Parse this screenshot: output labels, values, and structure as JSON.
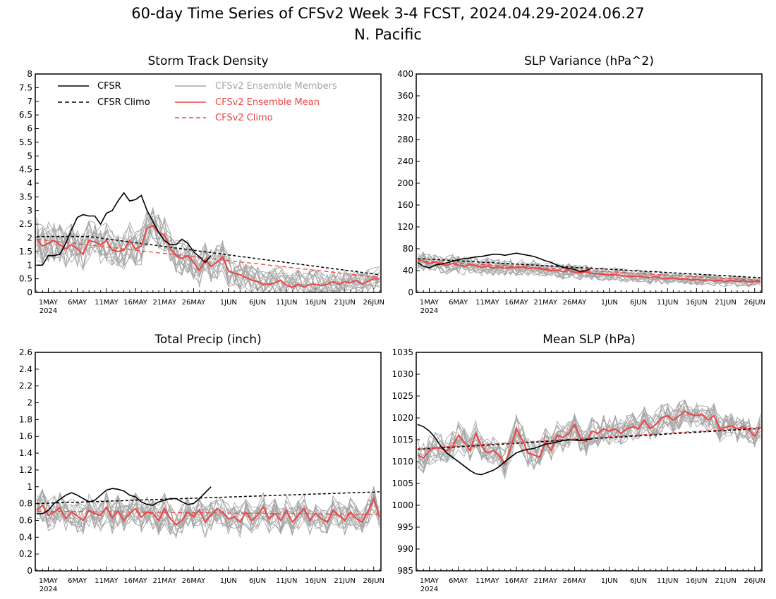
{
  "page": {
    "title_line1": "60-day Time Series of CFSv2 Week 3-4 FCST, 2024.04.29-2024.06.27",
    "title_line2": "N. Pacific"
  },
  "colors": {
    "cfsr": "#000000",
    "cfsr_climo": "#000000",
    "ens_members": "#a6a6a6",
    "ens_mean": "#ee4444",
    "cfsv2_climo": "#ee4444"
  },
  "x_axis": {
    "n_days": 60,
    "tick_positions": [
      2,
      7,
      12,
      17,
      22,
      27,
      33,
      38,
      43,
      48,
      53,
      58
    ],
    "tick_labels": [
      "1MAY",
      "6MAY",
      "11MAY",
      "16MAY",
      "21MAY",
      "26MAY",
      "1JUN",
      "6JUN",
      "11JUN",
      "16JUN",
      "21JUN",
      "26JUN"
    ],
    "year_label": "2024"
  },
  "legend": {
    "cfsr": "CFSR",
    "cfsr_climo": "CFSR Climo",
    "ens_members": "CFSv2 Ensemble Members",
    "ens_mean": "CFSv2 Ensemble Mean",
    "cfsv2_climo": "CFSv2 Climo"
  },
  "chart_data": [
    {
      "type": "line",
      "title": "Storm Track Density",
      "ylim": [
        0,
        8
      ],
      "yticks": [
        0,
        0.5,
        1,
        1.5,
        2,
        2.5,
        3,
        3.5,
        4,
        4.5,
        5,
        5.5,
        6,
        6.5,
        7,
        7.5,
        8
      ],
      "ytick_labels": [
        "0",
        "0.5",
        "1",
        "1.5",
        "2",
        "2.5",
        "3",
        "3.5",
        "4",
        "4.5",
        "5",
        "5.5",
        "6",
        "6.5",
        "7",
        "7.5",
        "8"
      ],
      "cfsr_days": [
        0,
        1,
        2,
        3,
        4,
        5,
        6,
        7,
        8,
        9,
        10,
        11,
        12,
        13,
        14,
        15,
        16,
        17,
        18,
        19,
        20,
        21,
        22,
        23,
        24,
        25,
        26,
        27,
        28,
        29,
        30
      ],
      "cfsr": [
        1.0,
        1.0,
        1.35,
        1.35,
        1.4,
        1.8,
        2.3,
        2.75,
        2.85,
        2.8,
        2.8,
        2.5,
        2.9,
        3.0,
        3.35,
        3.65,
        3.35,
        3.4,
        3.55,
        3.0,
        2.6,
        2.2,
        1.9,
        1.75,
        1.75,
        1.95,
        1.8,
        1.5,
        1.3,
        1.1,
        1.35
      ],
      "cfsr_climo_start": 2.05,
      "cfsr_climo_end": 0.65,
      "cfsv2_climo_start": 1.95,
      "cfsv2_climo_end": 0.55,
      "ens_mean": [
        1.95,
        1.7,
        1.8,
        1.9,
        1.75,
        1.6,
        1.75,
        1.6,
        1.4,
        1.9,
        1.85,
        1.75,
        1.9,
        1.55,
        1.5,
        1.55,
        1.9,
        1.6,
        1.7,
        2.35,
        2.45,
        2.2,
        2.1,
        1.6,
        1.35,
        1.25,
        1.35,
        1.1,
        0.8,
        1.2,
        0.95,
        1.1,
        1.3,
        0.8,
        0.7,
        0.65,
        0.55,
        0.45,
        0.4,
        0.3,
        0.3,
        0.35,
        0.45,
        0.25,
        0.2,
        0.3,
        0.2,
        0.3,
        0.3,
        0.25,
        0.3,
        0.4,
        0.3,
        0.4,
        0.35,
        0.45,
        0.3,
        0.4,
        0.5,
        0.5
      ],
      "ens_spread": 0.8,
      "ens_spread_end": 0.45
    },
    {
      "type": "line",
      "title": "SLP Variance (hPa^2)",
      "ylim": [
        0,
        400
      ],
      "yticks": [
        0,
        40,
        80,
        120,
        160,
        200,
        240,
        280,
        320,
        360,
        400
      ],
      "ytick_labels": [
        "0",
        "40",
        "80",
        "120",
        "160",
        "200",
        "240",
        "280",
        "320",
        "360",
        "400"
      ],
      "cfsr_days": [
        0,
        1,
        2,
        3,
        4,
        5,
        6,
        7,
        8,
        9,
        10,
        11,
        12,
        13,
        14,
        15,
        16,
        17,
        18,
        19,
        20,
        21,
        22,
        23,
        24,
        25,
        26,
        27,
        28,
        29,
        30
      ],
      "cfsr": [
        55,
        48,
        45,
        50,
        52,
        54,
        57,
        60,
        62,
        63,
        65,
        66,
        68,
        70,
        70,
        68,
        70,
        72,
        70,
        68,
        66,
        62,
        58,
        55,
        50,
        46,
        44,
        42,
        38,
        40,
        45
      ],
      "cfsr_climo_start": 62,
      "cfsr_climo_end": 27,
      "cfsv2_climo_start": 58,
      "cfsv2_climo_end": 22,
      "ens_mean": [
        60,
        57,
        53,
        56,
        52,
        50,
        53,
        50,
        48,
        51,
        49,
        46,
        48,
        45,
        47,
        44,
        46,
        45,
        47,
        44,
        45,
        43,
        42,
        40,
        41,
        38,
        40,
        37,
        36,
        38,
        35,
        34,
        33,
        32,
        33,
        31,
        30,
        29,
        30,
        28,
        27,
        29,
        26,
        25,
        27,
        24,
        25,
        23,
        24,
        22,
        23,
        21,
        22,
        20,
        22,
        20,
        21,
        19,
        20,
        20
      ],
      "ens_spread": 18,
      "ens_spread_end": 9
    },
    {
      "type": "line",
      "title": "Total Precip (inch)",
      "ylim": [
        0,
        2.6
      ],
      "yticks": [
        0,
        0.2,
        0.4,
        0.6,
        0.8,
        1.0,
        1.2,
        1.4,
        1.6,
        1.8,
        2.0,
        2.2,
        2.4,
        2.6
      ],
      "ytick_labels": [
        "0",
        "0.2",
        "0.4",
        "0.6",
        "0.8",
        "1",
        "1.2",
        "1.4",
        "1.6",
        "1.8",
        "2",
        "2.2",
        "2.4",
        "2.6"
      ],
      "cfsr_days": [
        0,
        1,
        2,
        3,
        4,
        5,
        6,
        7,
        8,
        9,
        10,
        11,
        12,
        13,
        14,
        15,
        16,
        17,
        18,
        19,
        20,
        21,
        22,
        23,
        24,
        25,
        26,
        27,
        28,
        29,
        30
      ],
      "cfsr": [
        0.68,
        0.68,
        0.72,
        0.8,
        0.85,
        0.9,
        0.93,
        0.9,
        0.86,
        0.82,
        0.84,
        0.9,
        0.96,
        0.98,
        0.97,
        0.95,
        0.9,
        0.88,
        0.82,
        0.79,
        0.78,
        0.82,
        0.84,
        0.86,
        0.86,
        0.82,
        0.79,
        0.8,
        0.86,
        0.93,
        1.0
      ],
      "cfsr_climo_start": 0.8,
      "cfsr_climo_end": 0.94,
      "cfsv2_climo_start": 0.71,
      "cfsv2_climo_end": 0.67,
      "ens_mean": [
        0.72,
        0.78,
        0.66,
        0.7,
        0.75,
        0.62,
        0.7,
        0.65,
        0.6,
        0.72,
        0.68,
        0.66,
        0.76,
        0.63,
        0.71,
        0.6,
        0.68,
        0.74,
        0.64,
        0.7,
        0.68,
        0.6,
        0.74,
        0.62,
        0.55,
        0.6,
        0.7,
        0.64,
        0.72,
        0.58,
        0.66,
        0.74,
        0.7,
        0.62,
        0.64,
        0.58,
        0.7,
        0.6,
        0.66,
        0.76,
        0.62,
        0.68,
        0.6,
        0.72,
        0.58,
        0.66,
        0.74,
        0.6,
        0.68,
        0.62,
        0.58,
        0.72,
        0.66,
        0.6,
        0.7,
        0.62,
        0.58,
        0.7,
        0.86,
        0.64
      ],
      "ens_spread": 0.2,
      "ens_spread_end": 0.17
    },
    {
      "type": "line",
      "title": "Mean SLP (hPa)",
      "ylim": [
        985,
        1035
      ],
      "yticks": [
        985,
        990,
        995,
        1000,
        1005,
        1010,
        1015,
        1020,
        1025,
        1030,
        1035
      ],
      "ytick_labels": [
        "985",
        "990",
        "995",
        "1000",
        "1005",
        "1010",
        "1015",
        "1020",
        "1025",
        "1030",
        "1035"
      ],
      "cfsr_days": [
        0,
        1,
        2,
        3,
        4,
        5,
        6,
        7,
        8,
        9,
        10,
        11,
        12,
        13,
        14,
        15,
        16,
        17,
        18,
        19,
        20,
        21,
        22,
        23,
        24,
        25,
        26,
        27,
        28,
        29,
        30
      ],
      "cfsr": [
        1018.5,
        1018,
        1017,
        1015.5,
        1013.5,
        1012,
        1011,
        1010,
        1009,
        1008,
        1007.2,
        1007,
        1007.5,
        1008,
        1008.8,
        1010,
        1011,
        1012,
        1012.5,
        1012.8,
        1013,
        1013.5,
        1014,
        1014.2,
        1014.5,
        1014.8,
        1015,
        1014.9,
        1014.8,
        1015,
        1015.2
      ],
      "cfsr_climo_start": 1012.8,
      "cfsr_climo_end": 1017.6,
      "cfsv2_climo_start": 1013.0,
      "cfsv2_climo_end": 1017.8,
      "ens_mean": [
        1011.5,
        1010.8,
        1012.5,
        1013.2,
        1013.0,
        1012.5,
        1013.5,
        1016,
        1014.5,
        1012.5,
        1016.5,
        1013.5,
        1012,
        1012.5,
        1011.5,
        1009.5,
        1013,
        1017.5,
        1015,
        1012,
        1011.5,
        1011,
        1014.5,
        1012.5,
        1016.0,
        1015.5,
        1016.5,
        1018.5,
        1015.5,
        1014.5,
        1017.0,
        1016.5,
        1017.5,
        1017.0,
        1017.5,
        1016.5,
        1017.5,
        1018.0,
        1017.5,
        1019.5,
        1017.5,
        1018.5,
        1020.0,
        1020.5,
        1019.5,
        1020.5,
        1021.5,
        1020.8,
        1020.5,
        1020.8,
        1019.5,
        1020.5,
        1017.5,
        1017.8,
        1018.2,
        1017.5,
        1018.0,
        1017.2,
        1015.8,
        1018.0
      ],
      "ens_spread": 3.5,
      "ens_spread_end": 3.0
    }
  ]
}
